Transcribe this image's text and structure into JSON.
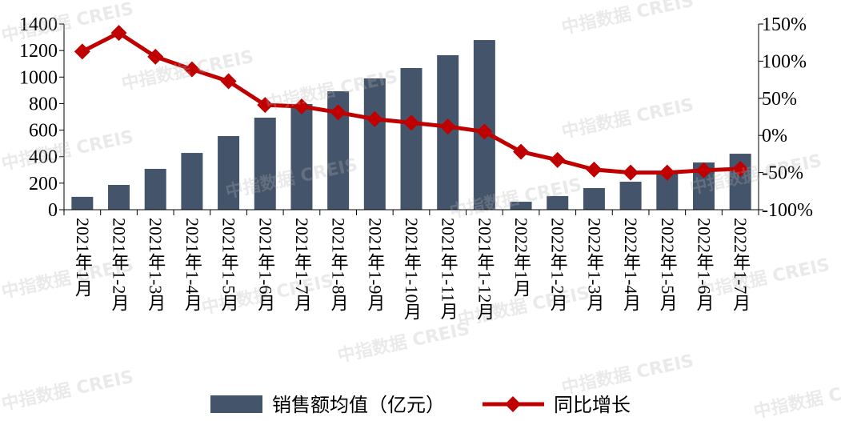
{
  "chart_data": {
    "type": "bar+line",
    "categories": [
      "2021年1月",
      "2021年1-2月",
      "2021年1-3月",
      "2021年1-4月",
      "2021年1-5月",
      "2021年1-6月",
      "2021年1-7月",
      "2021年1-8月",
      "2021年1-9月",
      "2021年1-10月",
      "2021年1-11月",
      "2021年1-12月",
      "2022年1月",
      "2022年1-2月",
      "2022年1-3月",
      "2022年1-4月",
      "2022年1-5月",
      "2022年1-6月",
      "2022年1-7月"
    ],
    "series": [
      {
        "name": "销售额均值（亿元）",
        "type": "bar",
        "axis": "left",
        "color": "#44546a",
        "values": [
          97,
          187,
          308,
          428,
          555,
          694,
          797,
          893,
          990,
          1068,
          1165,
          1279,
          60,
          103,
          163,
          211,
          290,
          356,
          422
        ]
      },
      {
        "name": "同比增长",
        "type": "line",
        "axis": "right",
        "color": "#c00000",
        "values": [
          113,
          138,
          106,
          89,
          73,
          41,
          39,
          31,
          22,
          17,
          12,
          5,
          -22,
          -33,
          -46,
          -50,
          -50,
          -47,
          -45
        ]
      }
    ],
    "left_axis": {
      "ylim": [
        0,
        1400
      ],
      "ticks": [
        "0",
        "200",
        "400",
        "600",
        "800",
        "1000",
        "1200",
        "1400"
      ]
    },
    "right_axis": {
      "ylim": [
        -100,
        150
      ],
      "ticks": [
        "-100%",
        "-50%",
        "0%",
        "50%",
        "100%",
        "150%"
      ]
    },
    "legend": "bottom",
    "grid": false
  },
  "watermark": "中指数据 CREIS"
}
